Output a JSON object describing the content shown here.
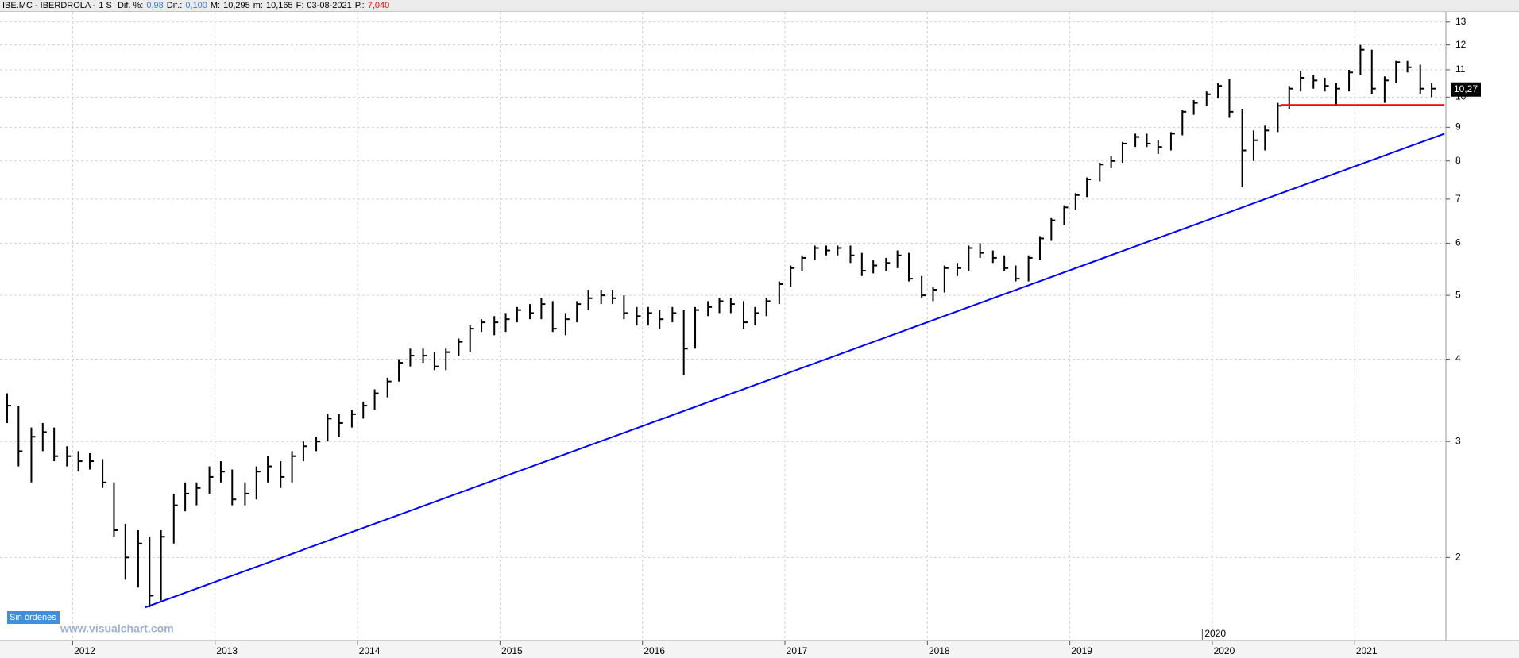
{
  "header": {
    "symbol": "IBE.MC - IBERDROLA -",
    "period": "1 S",
    "fields": [
      {
        "label": "Dif. %:",
        "value": "0,98",
        "color": "#3a7bd5"
      },
      {
        "label": "Dif.:",
        "value": "0,100",
        "color": "#3a7bd5"
      },
      {
        "label": "M:",
        "value": "10,295",
        "color": "#000000"
      },
      {
        "label": "m:",
        "value": "10,165",
        "color": "#000000"
      },
      {
        "label": "F:",
        "value": "03-08-2021",
        "color": "#000000"
      },
      {
        "label": "P.:",
        "value": "7,040",
        "color": "#ff0000"
      }
    ]
  },
  "status": "Sin órdenes",
  "watermark": "www.visualchart.com",
  "chart_data": {
    "type": "hlc",
    "log_y": true,
    "grid": true,
    "color": "#000000",
    "xlim": [
      2011.49,
      2021.64
    ],
    "xticks": [
      2012,
      2013,
      2014,
      2015,
      2016,
      2017,
      2018,
      2019,
      2020,
      2021
    ],
    "ylim": [
      1.5,
      13.47
    ],
    "yticks": [
      2,
      3,
      4,
      5,
      6,
      7,
      8,
      9,
      10,
      11,
      12,
      13
    ],
    "annotation": {
      "text": "2020",
      "x": 2019.93
    },
    "last_price": {
      "value": 10.27,
      "label": "10,27"
    },
    "lines": [
      {
        "color": "#0000ff",
        "x": [
          2012.51,
          2021.63
        ],
        "y": [
          1.68,
          8.8
        ]
      },
      {
        "color": "#ff0000",
        "x": [
          2020.48,
          2021.63
        ],
        "y": [
          9.73,
          9.73
        ]
      }
    ],
    "x": [
      2011.54,
      2011.62,
      2011.71,
      2011.79,
      2011.87,
      2011.96,
      2012.04,
      2012.12,
      2012.21,
      2012.29,
      2012.37,
      2012.46,
      2012.54,
      2012.62,
      2012.71,
      2012.79,
      2012.87,
      2012.96,
      2013.04,
      2013.12,
      2013.21,
      2013.29,
      2013.37,
      2013.46,
      2013.54,
      2013.62,
      2013.71,
      2013.79,
      2013.87,
      2013.96,
      2014.04,
      2014.12,
      2014.21,
      2014.29,
      2014.37,
      2014.46,
      2014.54,
      2014.62,
      2014.71,
      2014.79,
      2014.87,
      2014.96,
      2015.04,
      2015.12,
      2015.21,
      2015.29,
      2015.37,
      2015.46,
      2015.54,
      2015.62,
      2015.71,
      2015.79,
      2015.87,
      2015.96,
      2016.04,
      2016.12,
      2016.21,
      2016.29,
      2016.37,
      2016.46,
      2016.54,
      2016.62,
      2016.71,
      2016.79,
      2016.87,
      2016.96,
      2017.04,
      2017.12,
      2017.21,
      2017.29,
      2017.37,
      2017.46,
      2017.54,
      2017.62,
      2017.71,
      2017.79,
      2017.87,
      2017.96,
      2018.04,
      2018.12,
      2018.21,
      2018.29,
      2018.37,
      2018.46,
      2018.54,
      2018.62,
      2018.71,
      2018.79,
      2018.87,
      2018.96,
      2019.04,
      2019.12,
      2019.21,
      2019.29,
      2019.37,
      2019.46,
      2019.54,
      2019.62,
      2019.71,
      2019.79,
      2019.87,
      2019.96,
      2020.04,
      2020.12,
      2020.21,
      2020.29,
      2020.37,
      2020.46,
      2020.54,
      2020.62,
      2020.71,
      2020.79,
      2020.87,
      2020.96,
      2021.04,
      2021.12,
      2021.21,
      2021.29,
      2021.37,
      2021.46,
      2021.54
    ],
    "high": [
      3.55,
      3.4,
      3.15,
      3.2,
      3.15,
      2.95,
      2.9,
      2.88,
      2.82,
      2.6,
      2.25,
      2.2,
      2.15,
      2.2,
      2.5,
      2.6,
      2.6,
      2.75,
      2.8,
      2.72,
      2.6,
      2.75,
      2.85,
      2.8,
      2.9,
      3.0,
      3.05,
      3.3,
      3.3,
      3.35,
      3.45,
      3.6,
      3.75,
      4.0,
      4.15,
      4.15,
      4.1,
      4.15,
      4.3,
      4.5,
      4.6,
      4.65,
      4.7,
      4.8,
      4.85,
      4.95,
      4.9,
      4.7,
      4.9,
      5.1,
      5.1,
      5.1,
      5.0,
      4.8,
      4.8,
      4.75,
      4.8,
      4.75,
      4.8,
      4.9,
      4.95,
      4.95,
      4.9,
      4.8,
      4.95,
      5.25,
      5.55,
      5.75,
      5.95,
      5.95,
      5.95,
      5.95,
      5.8,
      5.65,
      5.7,
      5.85,
      5.8,
      5.35,
      5.15,
      5.55,
      5.6,
      5.95,
      6.0,
      5.85,
      5.75,
      5.55,
      5.75,
      6.15,
      6.55,
      6.85,
      7.15,
      7.55,
      7.95,
      8.15,
      8.55,
      8.8,
      8.8,
      8.6,
      8.85,
      9.55,
      9.9,
      10.2,
      10.5,
      10.65,
      9.6,
      8.9,
      9.05,
      9.8,
      10.4,
      10.95,
      10.8,
      10.7,
      10.5,
      11.0,
      12.0,
      11.8,
      10.75,
      11.35,
      11.35,
      11.2,
      10.5
    ],
    "low": [
      3.2,
      2.75,
      2.6,
      2.9,
      2.8,
      2.75,
      2.7,
      2.72,
      2.55,
      2.15,
      1.85,
      1.8,
      1.68,
      1.72,
      2.1,
      2.35,
      2.4,
      2.5,
      2.6,
      2.4,
      2.4,
      2.45,
      2.6,
      2.55,
      2.6,
      2.8,
      2.9,
      3.0,
      3.05,
      3.15,
      3.25,
      3.35,
      3.5,
      3.7,
      3.9,
      3.95,
      3.85,
      3.85,
      4.05,
      4.1,
      4.4,
      4.35,
      4.4,
      4.55,
      4.6,
      4.6,
      4.4,
      4.35,
      4.55,
      4.75,
      4.85,
      4.85,
      4.6,
      4.5,
      4.5,
      4.45,
      4.55,
      3.78,
      4.15,
      4.65,
      4.7,
      4.7,
      4.45,
      4.5,
      4.65,
      4.85,
      5.15,
      5.45,
      5.65,
      5.75,
      5.75,
      5.6,
      5.35,
      5.4,
      5.45,
      5.5,
      5.25,
      4.95,
      4.9,
      5.05,
      5.35,
      5.45,
      5.7,
      5.6,
      5.45,
      5.25,
      5.25,
      5.65,
      6.05,
      6.4,
      6.75,
      7.05,
      7.45,
      7.8,
      7.95,
      8.4,
      8.4,
      8.2,
      8.3,
      8.75,
      9.4,
      9.7,
      9.95,
      9.3,
      7.3,
      8.0,
      8.3,
      8.85,
      9.6,
      10.2,
      10.3,
      10.2,
      9.75,
      10.2,
      10.8,
      10.1,
      9.8,
      10.5,
      10.9,
      10.1,
      10.0
    ],
    "close": [
      3.4,
      2.9,
      3.05,
      3.1,
      2.85,
      2.85,
      2.8,
      2.8,
      2.6,
      2.2,
      2.0,
      2.1,
      1.75,
      2.15,
      2.4,
      2.5,
      2.55,
      2.65,
      2.7,
      2.45,
      2.5,
      2.7,
      2.75,
      2.65,
      2.85,
      2.95,
      3.0,
      3.25,
      3.2,
      3.3,
      3.4,
      3.55,
      3.7,
      3.95,
      4.05,
      4.05,
      3.9,
      4.1,
      4.25,
      4.45,
      4.55,
      4.55,
      4.6,
      4.75,
      4.7,
      4.85,
      4.45,
      4.6,
      4.85,
      4.95,
      5.0,
      4.95,
      4.7,
      4.65,
      4.7,
      4.6,
      4.7,
      4.15,
      4.75,
      4.8,
      4.9,
      4.85,
      4.55,
      4.7,
      4.9,
      5.2,
      5.5,
      5.7,
      5.9,
      5.85,
      5.9,
      5.75,
      5.45,
      5.55,
      5.6,
      5.75,
      5.3,
      5.0,
      5.1,
      5.5,
      5.5,
      5.9,
      5.8,
      5.7,
      5.5,
      5.3,
      5.7,
      6.1,
      6.5,
      6.8,
      7.1,
      7.5,
      7.9,
      8.0,
      8.5,
      8.7,
      8.5,
      8.4,
      8.8,
      9.5,
      9.8,
      10.1,
      10.4,
      9.5,
      8.3,
      8.6,
      8.9,
      9.7,
      10.3,
      10.7,
      10.6,
      10.4,
      10.3,
      10.9,
      11.8,
      10.3,
      10.6,
      11.3,
      11.1,
      10.3,
      10.3
    ]
  }
}
